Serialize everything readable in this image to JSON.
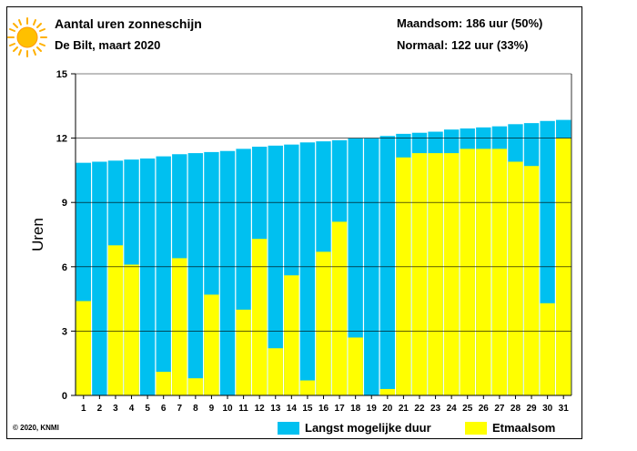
{
  "header": {
    "title": "Aantal uren zonneschijn",
    "subtitle": "De Bilt, maart 2020",
    "maandsom": "Maandsom: 186 uur (50%)",
    "normaal": "Normaal: 122 uur (33%)"
  },
  "footer": {
    "copyright": "© 2020, KNMI"
  },
  "legend": {
    "possible_label": "Langst mogelijke duur",
    "actual_label": "Etmaalsom"
  },
  "colors": {
    "possible": "#00c0f0",
    "actual": "#ffff00",
    "grid": "#000000",
    "sun": "#ffb000"
  },
  "chart_data": {
    "type": "bar",
    "ylabel": "Uren",
    "xlabel": "",
    "ylim": [
      0,
      15
    ],
    "yticks": [
      0,
      3,
      6,
      9,
      12,
      15
    ],
    "grid": "horizontal",
    "legend_position": "bottom-right",
    "categories": [
      "1",
      "2",
      "3",
      "4",
      "5",
      "6",
      "7",
      "8",
      "9",
      "10",
      "11",
      "12",
      "13",
      "14",
      "15",
      "16",
      "17",
      "18",
      "19",
      "20",
      "21",
      "22",
      "23",
      "24",
      "25",
      "26",
      "27",
      "28",
      "29",
      "30",
      "31"
    ],
    "series": [
      {
        "name": "Langst mogelijke duur",
        "values": [
          10.85,
          10.9,
          10.95,
          11.0,
          11.05,
          11.15,
          11.25,
          11.3,
          11.35,
          11.4,
          11.5,
          11.6,
          11.65,
          11.7,
          11.8,
          11.85,
          11.9,
          12.0,
          12.0,
          12.1,
          12.2,
          12.25,
          12.3,
          12.4,
          12.45,
          12.5,
          12.55,
          12.65,
          12.7,
          12.8,
          12.85
        ]
      },
      {
        "name": "Etmaalsom",
        "values": [
          4.4,
          0.0,
          7.0,
          6.1,
          0.0,
          1.1,
          6.4,
          0.8,
          4.7,
          0.0,
          4.0,
          7.3,
          2.2,
          5.6,
          0.7,
          6.7,
          8.1,
          2.7,
          0.0,
          0.3,
          11.1,
          11.3,
          11.3,
          11.3,
          11.5,
          11.5,
          11.5,
          10.9,
          10.7,
          4.3,
          12.0
        ]
      }
    ]
  }
}
